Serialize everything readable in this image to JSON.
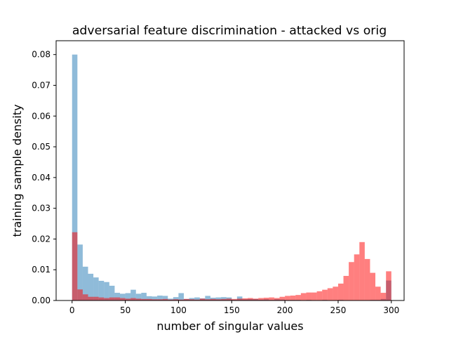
{
  "chart_data": {
    "type": "bar",
    "title": "adversarial feature discrimination - attacked vs orig",
    "xlabel": "number of singular values",
    "ylabel": "training sample density",
    "xlim": [
      -15,
      312
    ],
    "ylim": [
      0,
      0.0845
    ],
    "x_ticks": [
      0,
      50,
      100,
      150,
      200,
      250,
      300
    ],
    "x_tick_labels": [
      "0",
      "50",
      "100",
      "150",
      "200",
      "250",
      "300"
    ],
    "y_ticks": [
      0,
      0.01,
      0.02,
      0.03,
      0.04,
      0.05,
      0.06,
      0.07,
      0.08
    ],
    "y_tick_labels": [
      "0.00",
      "0.01",
      "0.02",
      "0.03",
      "0.04",
      "0.05",
      "0.06",
      "0.07",
      "0.08"
    ],
    "grid": false,
    "legend": "none",
    "bin_edges": [
      0,
      5,
      10,
      15,
      20,
      25,
      30,
      35,
      40,
      45,
      50,
      55,
      60,
      65,
      70,
      75,
      80,
      85,
      90,
      95,
      100,
      105,
      110,
      115,
      120,
      125,
      130,
      135,
      140,
      145,
      150,
      155,
      160,
      165,
      170,
      175,
      180,
      185,
      190,
      195,
      200,
      205,
      210,
      215,
      220,
      225,
      230,
      235,
      240,
      245,
      250,
      255,
      260,
      265,
      270,
      275,
      280,
      285,
      290,
      295,
      300
    ],
    "series": [
      {
        "color": "#1f77b4",
        "opacity": 0.5,
        "values": [
          0.08,
          0.0182,
          0.011,
          0.0087,
          0.0075,
          0.0064,
          0.006,
          0.0048,
          0.0025,
          0.0022,
          0.0024,
          0.0035,
          0.0022,
          0.0025,
          0.0014,
          0.0013,
          0.0016,
          0.0015,
          0.0006,
          0.0011,
          0.0024,
          0.0005,
          0.0008,
          0.001,
          0.0007,
          0.0015,
          0.0009,
          0.001,
          0.0011,
          0.001,
          0.0003,
          0.0013,
          0.0004,
          0.0005,
          0.0005,
          0.0003,
          0.0004,
          0.0002,
          0.0004,
          0.0003,
          0.0002,
          0.0002,
          0.0002,
          0.0001,
          0.0002,
          0.0001,
          0.0001,
          0.0002,
          0.0001,
          0.0001,
          0.0002,
          0.0001,
          0.0001,
          0.0001,
          0.0001,
          0.0001,
          0.0002,
          0.0002,
          0.0005,
          0.0065
        ]
      },
      {
        "color": "#ff0000",
        "opacity": 0.5,
        "values": [
          0.0222,
          0.0036,
          0.002,
          0.0012,
          0.0012,
          0.001,
          0.0008,
          0.001,
          0.001,
          0.0008,
          0.0006,
          0.0008,
          0.0006,
          0.0005,
          0.0005,
          0.0004,
          0.0004,
          0.0005,
          0.0003,
          0.0004,
          0.0003,
          0.0005,
          0.0004,
          0.0003,
          0.0006,
          0.0004,
          0.0005,
          0.0004,
          0.0005,
          0.0006,
          0.0005,
          0.0006,
          0.0007,
          0.0008,
          0.0006,
          0.0008,
          0.0009,
          0.001,
          0.0008,
          0.0012,
          0.0015,
          0.0016,
          0.0018,
          0.0024,
          0.0026,
          0.0026,
          0.003,
          0.0035,
          0.004,
          0.0045,
          0.0055,
          0.008,
          0.0125,
          0.015,
          0.019,
          0.0135,
          0.009,
          0.0045,
          0.0025,
          0.0095
        ]
      }
    ]
  }
}
